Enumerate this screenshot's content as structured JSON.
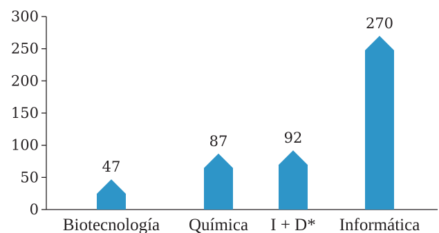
{
  "chart_data": {
    "type": "bar",
    "categories": [
      "Biotecnología",
      "Química",
      "I + D*",
      "Informática"
    ],
    "values": [
      47,
      87,
      92,
      270
    ],
    "ylim": [
      0,
      300
    ],
    "yticks": [
      0,
      50,
      100,
      150,
      200,
      250,
      300
    ],
    "data_labels": [
      "47",
      "87",
      "92",
      "270"
    ],
    "bar_shape": "arrow-up",
    "grid": false,
    "colors": {
      "bar": "#2e95c8",
      "axis": "#231f20",
      "text": "#231f20"
    }
  }
}
